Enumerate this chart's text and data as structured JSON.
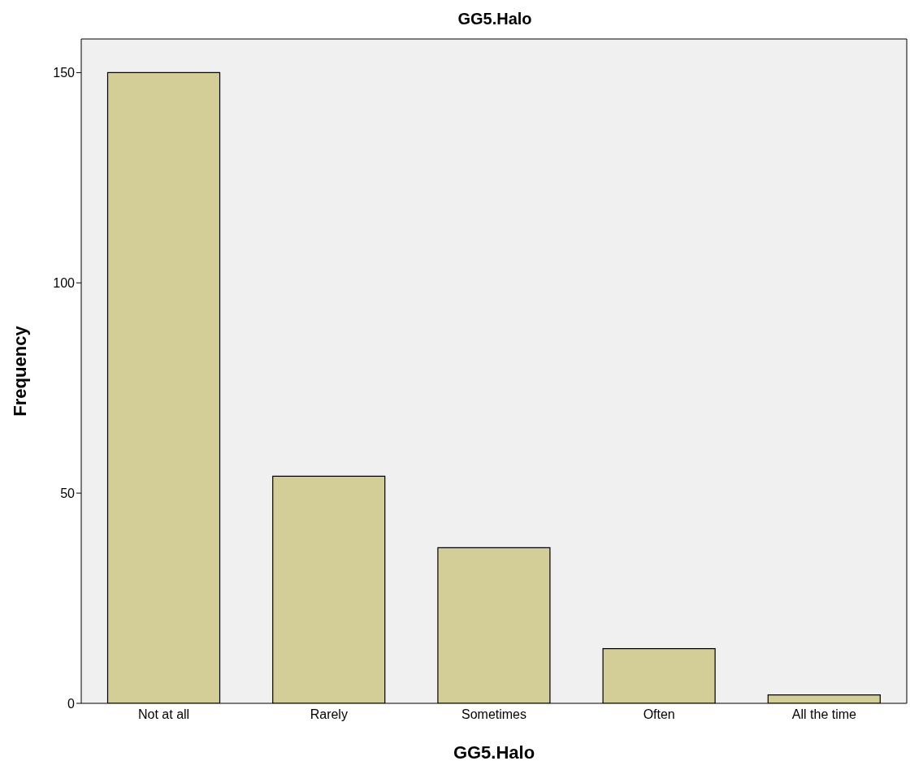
{
  "chart_data": {
    "type": "bar",
    "title": "GG5.Halo",
    "xlabel": "GG5.Halo",
    "ylabel": "Frequency",
    "categories": [
      "Not at all",
      "Rarely",
      "Sometimes",
      "Often",
      "All the time"
    ],
    "values": [
      150,
      54,
      37,
      13,
      2
    ],
    "color": "#d3ce97",
    "ylim": [
      0,
      158
    ],
    "yticks": [
      0,
      50,
      100,
      150
    ]
  }
}
